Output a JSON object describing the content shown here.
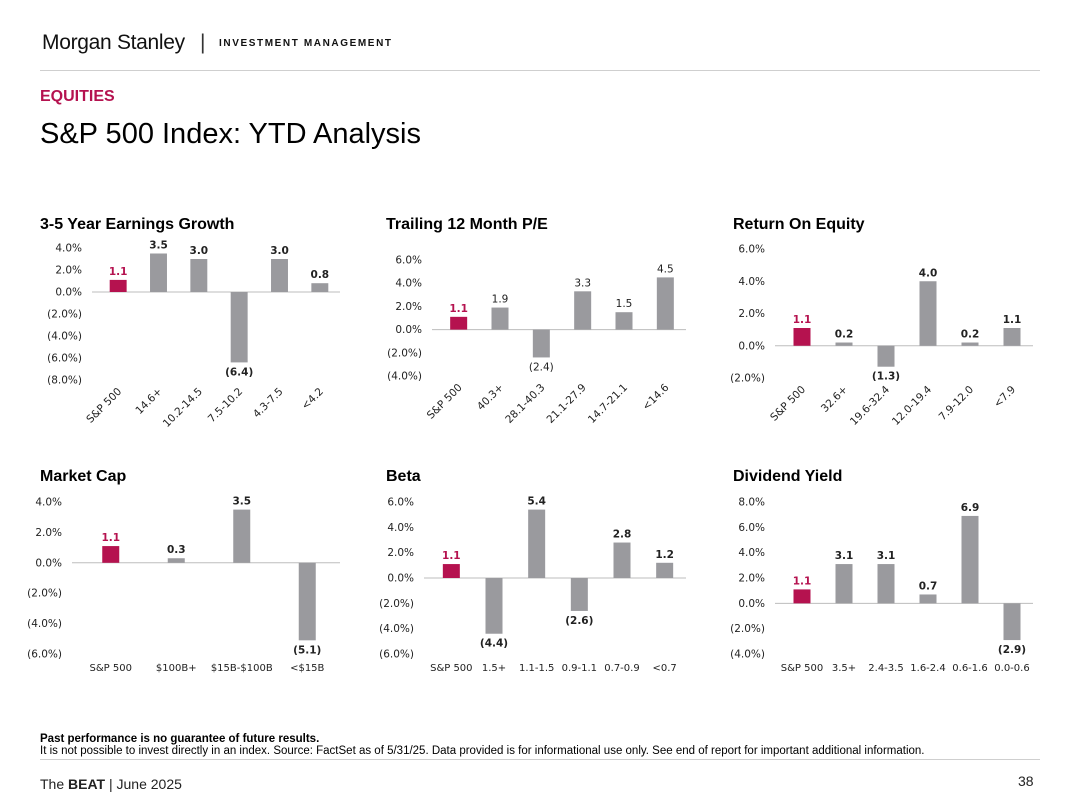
{
  "header": {
    "brand": "Morgan Stanley",
    "separator": "|",
    "division": "INVESTMENT MANAGEMENT",
    "section": "EQUITIES",
    "title": "S&P 500 Index: YTD Analysis"
  },
  "colors": {
    "highlight": "#b5124f",
    "bar": "#9a9a9e",
    "axis": "#bdbdbd"
  },
  "chart_data": [
    {
      "id": "earnings",
      "title": "3-5 Year Earnings Growth",
      "type": "bar",
      "categories": [
        "S&P 500",
        "14.6+",
        "10.2-14.5",
        "7.5-10.2",
        "4.3-7.5",
        "<4.2"
      ],
      "values": [
        1.1,
        3.5,
        3.0,
        -6.4,
        3.0,
        0.8
      ],
      "labels": [
        "1.1",
        "3.5",
        "3.0",
        "(6.4)",
        "3.0",
        "0.8"
      ],
      "ylim": [
        -8,
        4
      ],
      "yticks": [
        4,
        2,
        0,
        -2,
        -4,
        -6,
        -8
      ],
      "yticklabels": [
        "4.0%",
        "2.0%",
        "0.0%",
        "(2.0%)",
        "(4.0%)",
        "(6.0%)",
        "(8.0%)"
      ],
      "rotated_xlabels": true,
      "label_bold": true
    },
    {
      "id": "pe",
      "title": "Trailing 12 Month P/E",
      "type": "bar",
      "categories": [
        "S&P 500",
        "40.3+",
        "28.1-40.3",
        "21.1-27.9",
        "14.7-21.1",
        "<14.6"
      ],
      "values": [
        1.1,
        1.9,
        -2.4,
        3.3,
        1.5,
        4.5
      ],
      "labels": [
        "1.1",
        "1.9",
        "(2.4)",
        "3.3",
        "1.5",
        "4.5"
      ],
      "ylim": [
        -4,
        6
      ],
      "yticks": [
        6,
        4,
        2,
        0,
        -2,
        -4
      ],
      "yticklabels": [
        "6.0%",
        "4.0%",
        "2.0%",
        "0.0%",
        "(2.0%)",
        "(4.0%)"
      ],
      "rotated_xlabels": true,
      "label_bold": false
    },
    {
      "id": "roe",
      "title": "Return On Equity",
      "type": "bar",
      "categories": [
        "S&P 500",
        "32.6+",
        "19.6-32.4",
        "12.0-19.4",
        "7.9-12.0",
        "<7.9"
      ],
      "values": [
        1.1,
        0.2,
        -1.3,
        4.0,
        0.2,
        1.1
      ],
      "labels": [
        "1.1",
        "0.2",
        "(1.3)",
        "4.0",
        "0.2",
        "1.1"
      ],
      "ylim": [
        -2,
        6
      ],
      "yticks": [
        6,
        4,
        2,
        0,
        -2
      ],
      "yticklabels": [
        "6.0%",
        "4.0%",
        "2.0%",
        "0.0%",
        "(2.0%)"
      ],
      "rotated_xlabels": true,
      "label_bold": true
    },
    {
      "id": "mcap",
      "title": "Market Cap",
      "type": "bar",
      "categories": [
        "S&P 500",
        "$100B+",
        "$15B-$100B",
        "<$15B"
      ],
      "values": [
        1.1,
        0.3,
        3.5,
        -5.1
      ],
      "labels": [
        "1.1",
        "0.3",
        "3.5",
        "(5.1)"
      ],
      "ylim": [
        -6,
        4
      ],
      "yticks": [
        4,
        2,
        0,
        -2,
        -4,
        -6
      ],
      "yticklabels": [
        "4.0%",
        "2.0%",
        "0.0%",
        "(2.0%)",
        "(4.0%)",
        "(6.0%)"
      ],
      "rotated_xlabels": false,
      "label_bold": true
    },
    {
      "id": "beta",
      "title": "Beta",
      "type": "bar",
      "categories": [
        "S&P 500",
        "1.5+",
        "1.1-1.5",
        "0.9-1.1",
        "0.7-0.9",
        "<0.7"
      ],
      "values": [
        1.1,
        -4.4,
        5.4,
        -2.6,
        2.8,
        1.2
      ],
      "labels": [
        "1.1",
        "(4.4)",
        "5.4",
        "(2.6)",
        "2.8",
        "1.2"
      ],
      "ylim": [
        -6,
        6
      ],
      "yticks": [
        6,
        4,
        2,
        0,
        -2,
        -4,
        -6
      ],
      "yticklabels": [
        "6.0%",
        "4.0%",
        "2.0%",
        "0.0%",
        "(2.0%)",
        "(4.0%)",
        "(6.0%)"
      ],
      "rotated_xlabels": false,
      "label_bold": true
    },
    {
      "id": "div",
      "title": "Dividend Yield",
      "type": "bar",
      "categories": [
        "S&P 500",
        "3.5+",
        "2.4-3.5",
        "1.6-2.4",
        "0.6-1.6",
        "0.0-0.6"
      ],
      "values": [
        1.1,
        3.1,
        3.1,
        0.7,
        6.9,
        -2.9
      ],
      "labels": [
        "1.1",
        "3.1",
        "3.1",
        "0.7",
        "6.9",
        "(2.9)"
      ],
      "ylim": [
        -4,
        8
      ],
      "yticks": [
        8,
        6,
        4,
        2,
        0,
        -2,
        -4
      ],
      "yticklabels": [
        "8.0%",
        "6.0%",
        "4.0%",
        "2.0%",
        "0.0%",
        "(2.0%)",
        "(4.0%)"
      ],
      "rotated_xlabels": false,
      "label_bold": true
    }
  ],
  "footnote": {
    "bold": "Past performance is no guarantee of future results.",
    "text": "It is not possible to invest directly in an index. Source: FactSet as of 5/31/25. Data provided is for informational use only. See end of report for important additional information."
  },
  "footer": {
    "prefix": "The",
    "brand": "BEAT",
    "suffix": "| June 2025",
    "page": "38"
  }
}
